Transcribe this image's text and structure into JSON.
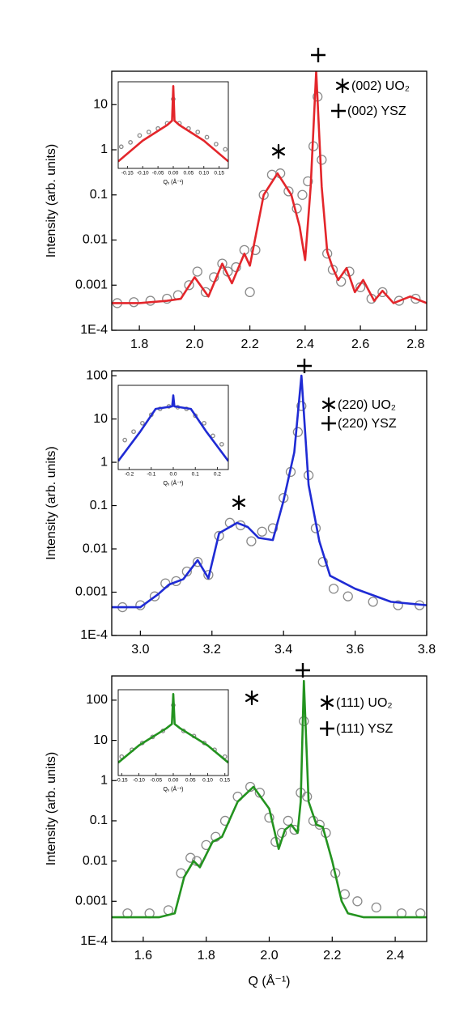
{
  "chart_data": [
    {
      "type": "line",
      "ylabel": "Intensity (arb. units)",
      "log_y": true,
      "xlim": [
        1.7,
        2.84
      ],
      "ylim": [
        0.0001,
        55
      ],
      "xticks": [
        1.8,
        {
          "value": 2,
          "label": "2.0"
        },
        2.2,
        2.4,
        2.6,
        2.8
      ],
      "yticks": [
        {
          "value": 0.0001,
          "label": "1E-4"
        },
        0.001,
        0.01,
        0.1,
        1,
        10
      ],
      "labels": [
        "(002) UO₂",
        "(002) YSZ"
      ],
      "series": [
        {
          "marker": "circle",
          "color": "#8a8a8a",
          "x": [
            1.72,
            1.78,
            1.84,
            1.9,
            1.94,
            1.98,
            2.01,
            2.04,
            2.07,
            2.1,
            2.12,
            2.15,
            2.18,
            2.2,
            2.22,
            2.25,
            2.28,
            2.31,
            2.34,
            2.37,
            2.39,
            2.41,
            2.43,
            2.445,
            2.46,
            2.48,
            2.5,
            2.53,
            2.56,
            2.6,
            2.64,
            2.68,
            2.74,
            2.8
          ],
          "values": [
            0.0004,
            0.00042,
            0.00045,
            0.0005,
            0.0006,
            0.001,
            0.002,
            0.0007,
            0.0015,
            0.003,
            0.002,
            0.0025,
            0.006,
            0.0007,
            0.006,
            0.1,
            0.28,
            0.3,
            0.12,
            0.05,
            0.1,
            0.2,
            1.2,
            15,
            0.6,
            0.005,
            0.0022,
            0.0012,
            0.002,
            0.0009,
            0.0005,
            0.0007,
            0.00045,
            0.0005
          ]
        },
        {
          "marker": "line",
          "color": "#e3262b",
          "x": [
            1.7,
            1.8,
            1.9,
            1.95,
            2.0,
            2.05,
            2.1,
            2.135,
            2.18,
            2.2,
            2.25,
            2.3,
            2.35,
            2.38,
            2.4,
            2.42,
            2.44,
            2.46,
            2.48,
            2.5,
            2.52,
            2.55,
            2.58,
            2.61,
            2.65,
            2.68,
            2.72,
            2.78,
            2.84
          ],
          "values": [
            0.0004,
            0.0004,
            0.00045,
            0.0005,
            0.0015,
            0.00056,
            0.003,
            0.0011,
            0.005,
            0.0027,
            0.1,
            0.3,
            0.1,
            0.02,
            0.0036,
            0.15,
            55,
            0.15,
            0.0055,
            0.0024,
            0.0013,
            0.0024,
            0.0007,
            0.0013,
            0.00045,
            0.00075,
            0.0004,
            0.00056,
            0.0004
          ]
        }
      ],
      "inset": {
        "xlabel": "Qₓ (Å⁻¹)",
        "xlim": [
          -0.18,
          0.18
        ],
        "ylim": [
          0,
          100
        ],
        "xticks": [
          -0.15,
          {
            "value": -0.1,
            "label": "-0.10"
          },
          -0.05,
          {
            "value": 0,
            "label": "0.00"
          },
          0.05,
          {
            "value": 0.1,
            "label": "0.10"
          },
          0.15
        ],
        "series": [
          {
            "marker": "circle",
            "color": "#8a8a8a",
            "x": [
              -0.17,
              -0.14,
              -0.11,
              -0.08,
              -0.05,
              -0.02,
              0,
              0.02,
              0.05,
              0.08,
              0.11,
              0.14,
              0.17
            ],
            "values": [
              25,
              30,
              38,
              42,
              46,
              52,
              80,
              52,
              46,
              42,
              36,
              28,
              22
            ]
          },
          {
            "marker": "line",
            "color": "#e3262b",
            "x": [
              -0.18,
              -0.1,
              -0.02,
              -0.004,
              0,
              0.004,
              0.02,
              0.1,
              0.18
            ],
            "values": [
              8,
              32,
              50,
              55,
              95,
              55,
              50,
              32,
              8
            ]
          }
        ]
      }
    },
    {
      "type": "line",
      "ylabel": "Intensity (arb. units)",
      "log_y": true,
      "xlim": [
        2.92,
        3.8
      ],
      "ylim": [
        0.0001,
        130
      ],
      "xticks": [
        {
          "value": 3,
          "label": "3.0"
        },
        3.2,
        3.4,
        3.6,
        3.8
      ],
      "yticks": [
        {
          "value": 0.0001,
          "label": "1E-4"
        },
        0.001,
        0.01,
        0.1,
        1,
        10,
        100
      ],
      "labels": [
        "(220) UO₂",
        "(220) YSZ"
      ],
      "series": [
        {
          "marker": "circle",
          "color": "#8a8a8a",
          "x": [
            2.95,
            3.0,
            3.04,
            3.07,
            3.1,
            3.13,
            3.16,
            3.19,
            3.22,
            3.25,
            3.28,
            3.31,
            3.34,
            3.37,
            3.4,
            3.42,
            3.44,
            3.45,
            3.47,
            3.49,
            3.51,
            3.54,
            3.58,
            3.65,
            3.72,
            3.78
          ],
          "values": [
            0.00045,
            0.0005,
            0.0008,
            0.0016,
            0.0018,
            0.003,
            0.005,
            0.0025,
            0.02,
            0.04,
            0.035,
            0.015,
            0.025,
            0.03,
            0.15,
            0.6,
            5,
            20,
            0.5,
            0.03,
            0.005,
            0.0012,
            0.0008,
            0.0006,
            0.0005,
            0.0005
          ]
        },
        {
          "marker": "line",
          "color": "#1f2bd4",
          "x": [
            2.92,
            3.0,
            3.05,
            3.08,
            3.12,
            3.16,
            3.19,
            3.22,
            3.27,
            3.3,
            3.33,
            3.37,
            3.4,
            3.43,
            3.45,
            3.47,
            3.5,
            3.53,
            3.6,
            3.7,
            3.8
          ],
          "values": [
            0.00045,
            0.00045,
            0.0009,
            0.0015,
            0.002,
            0.0055,
            0.0021,
            0.023,
            0.04,
            0.032,
            0.018,
            0.016,
            0.13,
            1.7,
            100,
            0.3,
            0.015,
            0.0024,
            0.0012,
            0.0006,
            0.0005
          ]
        }
      ],
      "inset": {
        "xlabel": "Qₓ (Å⁻¹)",
        "xlim": [
          -0.25,
          0.25
        ],
        "ylim": [
          0,
          100
        ],
        "xticks": [
          -0.2,
          -0.1,
          {
            "value": 0,
            "label": "0.0"
          },
          0.1,
          0.2
        ],
        "series": [
          {
            "marker": "circle",
            "color": "#8a8a8a",
            "x": [
              -0.22,
              -0.18,
              -0.14,
              -0.1,
              -0.06,
              -0.02,
              0.02,
              0.06,
              0.1,
              0.14,
              0.18,
              0.22
            ],
            "values": [
              35,
              45,
              55,
              65,
              72,
              75,
              74,
              72,
              64,
              55,
              40,
              30
            ]
          },
          {
            "marker": "line",
            "color": "#1f2bd4",
            "x": [
              -0.25,
              -0.15,
              -0.08,
              -0.005,
              0,
              0.005,
              0.08,
              0.15,
              0.25
            ],
            "values": [
              10,
              45,
              72,
              75,
              88,
              75,
              72,
              45,
              10
            ]
          }
        ]
      }
    },
    {
      "type": "line",
      "ylabel": "Intensity (arb. units)",
      "xlabel": "Q (Å⁻¹)",
      "log_y": true,
      "xlim": [
        1.5,
        2.5
      ],
      "ylim": [
        0.0001,
        400
      ],
      "xticks": [
        1.6,
        1.8,
        {
          "value": 2,
          "label": "2.0"
        },
        2.2,
        2.4
      ],
      "yticks": [
        {
          "value": 0.0001,
          "label": "1E-4"
        },
        0.001,
        0.01,
        0.1,
        1,
        10,
        100
      ],
      "labels": [
        "(111) UO₂",
        "(111) YSZ"
      ],
      "series": [
        {
          "marker": "circle",
          "color": "#8a8a8a",
          "x": [
            1.55,
            1.62,
            1.68,
            1.72,
            1.75,
            1.77,
            1.8,
            1.83,
            1.86,
            1.9,
            1.94,
            1.97,
            2.0,
            2.02,
            2.04,
            2.06,
            2.08,
            2.1,
            2.11,
            2.12,
            2.14,
            2.16,
            2.18,
            2.21,
            2.24,
            2.28,
            2.34,
            2.42,
            2.48
          ],
          "values": [
            0.0005,
            0.0005,
            0.0006,
            0.005,
            0.012,
            0.01,
            0.025,
            0.04,
            0.1,
            0.4,
            0.7,
            0.5,
            0.12,
            0.03,
            0.05,
            0.1,
            0.06,
            0.5,
            30,
            0.4,
            0.1,
            0.08,
            0.05,
            0.005,
            0.0015,
            0.001,
            0.0007,
            0.0005,
            0.0005
          ]
        },
        {
          "marker": "line",
          "color": "#23931f",
          "x": [
            1.5,
            1.65,
            1.7,
            1.73,
            1.76,
            1.78,
            1.82,
            1.85,
            1.9,
            1.95,
            2.0,
            2.03,
            2.05,
            2.07,
            2.09,
            2.1,
            2.11,
            2.125,
            2.15,
            2.17,
            2.2,
            2.23,
            2.25,
            2.3,
            2.5
          ],
          "values": [
            0.0004,
            0.0004,
            0.0005,
            0.004,
            0.01,
            0.007,
            0.03,
            0.04,
            0.3,
            0.7,
            0.2,
            0.02,
            0.06,
            0.08,
            0.05,
            0.3,
            300,
            0.3,
            0.08,
            0.07,
            0.01,
            0.001,
            0.0005,
            0.0004,
            0.0004
          ]
        }
      ],
      "inset": {
        "xlabel": "Qₓ (Å⁻¹)",
        "xlim": [
          -0.16,
          0.16
        ],
        "ylim": [
          0,
          100
        ],
        "xticks": [
          -0.15,
          {
            "value": -0.1,
            "label": "-0.10"
          },
          -0.05,
          {
            "value": 0,
            "label": "0.00"
          },
          0.05,
          {
            "value": 0.1,
            "label": "0.10"
          },
          0.15
        ],
        "series": [
          {
            "marker": "circle",
            "color": "#8a8a8a",
            "x": [
              -0.15,
              -0.12,
              -0.09,
              -0.06,
              -0.03,
              0,
              0.03,
              0.06,
              0.09,
              0.12,
              0.15
            ],
            "values": [
              22,
              30,
              38,
              45,
              52,
              82,
              52,
              46,
              38,
              30,
              22
            ]
          },
          {
            "marker": "line",
            "color": "#23931f",
            "x": [
              -0.16,
              -0.1,
              -0.02,
              -0.004,
              0,
              0.004,
              0.02,
              0.1,
              0.16
            ],
            "values": [
              15,
              35,
              55,
              60,
              95,
              60,
              55,
              35,
              15
            ]
          }
        ]
      }
    }
  ]
}
